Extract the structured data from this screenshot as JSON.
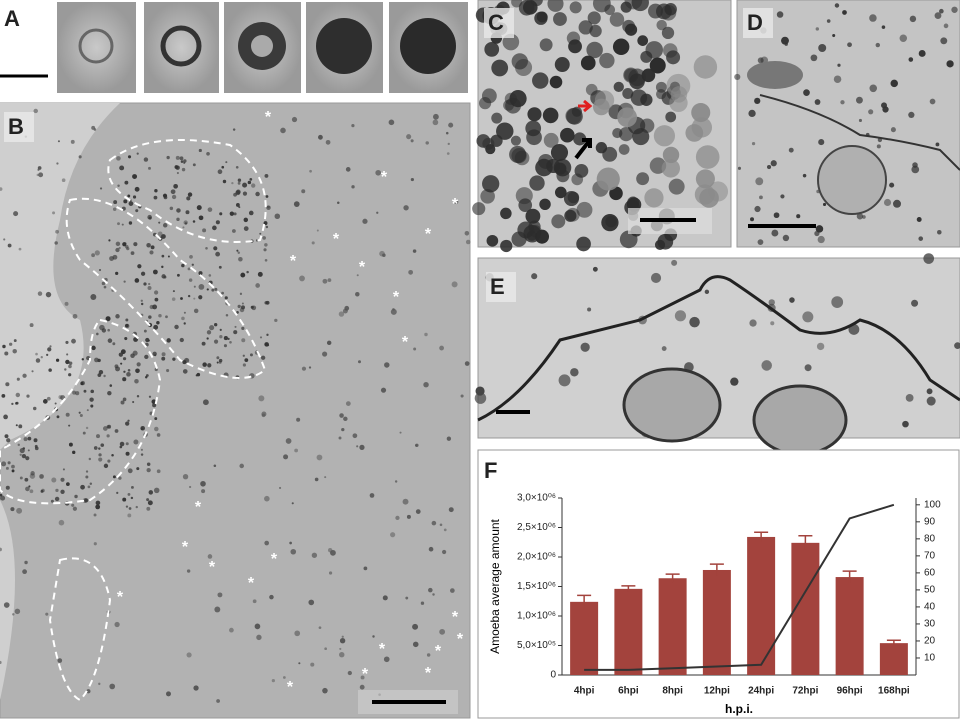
{
  "panels": {
    "a": {
      "label": "A"
    },
    "b": {
      "label": "B",
      "markers": [
        "*",
        "*",
        "*",
        "*",
        "*",
        "*",
        "*",
        "*",
        "*",
        "*",
        "*",
        "*",
        "*",
        "*",
        "*",
        "*",
        "*",
        "*",
        "*",
        "*",
        "*",
        "*"
      ]
    },
    "c": {
      "label": "C"
    },
    "d": {
      "label": "D"
    },
    "e": {
      "label": "E"
    }
  },
  "chart_data": {
    "type": "bar",
    "panel_label": "F",
    "x_label": "h.p.i.",
    "y_label": "Amoeba average amount",
    "categories": [
      "4hpi",
      "6hpi",
      "8hpi",
      "12hpi",
      "24hpi",
      "72hpi",
      "96hpi",
      "168hpi"
    ],
    "series": [
      {
        "type": "bar",
        "color": "#a3433d",
        "values": [
          1240000,
          1460000,
          1640000,
          1780000,
          2340000,
          2240000,
          1660000,
          540000
        ],
        "errors": [
          110000,
          50000,
          70000,
          100000,
          80000,
          120000,
          100000,
          50000
        ]
      },
      {
        "type": "line",
        "axis": "y2",
        "color": "#333333",
        "values": [
          3,
          3,
          4,
          5,
          6,
          49,
          92,
          100
        ]
      }
    ],
    "ylim": [
      0,
      3000000
    ],
    "yticks": [
      {
        "value": 0,
        "label": "0"
      },
      {
        "value": 500000,
        "label": "5,0×10⁰⁵"
      },
      {
        "value": 1000000,
        "label": "1,0×10⁰⁶"
      },
      {
        "value": 1500000,
        "label": "1,5×10⁰⁶"
      },
      {
        "value": 2000000,
        "label": "2,0×10⁰⁶"
      },
      {
        "value": 2500000,
        "label": "2,5×10⁰⁶"
      },
      {
        "value": 3000000,
        "label": "3,0×10⁰⁶"
      }
    ],
    "y2lim": [
      0,
      104
    ],
    "y2ticks": [
      10,
      20,
      30,
      40,
      50,
      60,
      70,
      80,
      90,
      100
    ]
  }
}
